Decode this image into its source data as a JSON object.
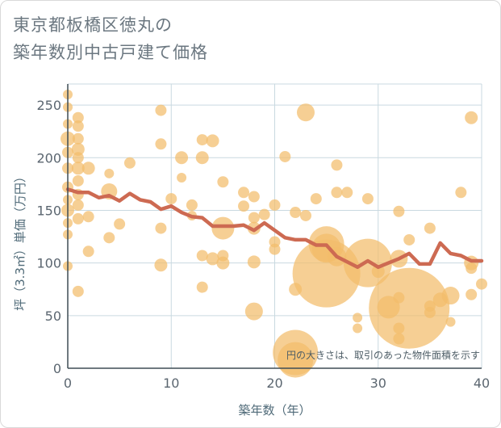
{
  "title_lines": [
    "東京都板橋区徳丸の",
    "築年数別中古戸建て価格"
  ],
  "chart_data": {
    "type": "scatter",
    "xlabel": "築年数（年）",
    "ylabel": "坪（3.3㎡）単価（万円）",
    "xlim": [
      0,
      40
    ],
    "ylim": [
      0,
      270
    ],
    "xticks": [
      0,
      10,
      20,
      30,
      40
    ],
    "yticks": [
      0,
      50,
      100,
      150,
      200,
      250
    ],
    "grid": true,
    "note": "円の大きさは、取引のあった物件面積を示す",
    "colors": {
      "bubble": "#f3bd6b",
      "line": "#cd6a52",
      "grid": "#c9d9e0",
      "axis": "#3f4d55"
    },
    "bubbles": [
      {
        "x": 0,
        "y": 260,
        "r": 6
      },
      {
        "x": 0,
        "y": 248,
        "r": 6
      },
      {
        "x": 0,
        "y": 232,
        "r": 6
      },
      {
        "x": 0,
        "y": 218,
        "r": 9
      },
      {
        "x": 0,
        "y": 205,
        "r": 7
      },
      {
        "x": 0,
        "y": 190,
        "r": 7
      },
      {
        "x": 0,
        "y": 172,
        "r": 7
      },
      {
        "x": 0,
        "y": 160,
        "r": 6
      },
      {
        "x": 0,
        "y": 150,
        "r": 8
      },
      {
        "x": 0,
        "y": 138,
        "r": 6
      },
      {
        "x": 0,
        "y": 127,
        "r": 6
      },
      {
        "x": 0,
        "y": 97,
        "r": 6
      },
      {
        "x": 1,
        "y": 238,
        "r": 7
      },
      {
        "x": 1,
        "y": 230,
        "r": 7
      },
      {
        "x": 1,
        "y": 218,
        "r": 7
      },
      {
        "x": 1,
        "y": 208,
        "r": 8
      },
      {
        "x": 1,
        "y": 200,
        "r": 7
      },
      {
        "x": 1,
        "y": 190,
        "r": 8
      },
      {
        "x": 1,
        "y": 178,
        "r": 7
      },
      {
        "x": 1,
        "y": 165,
        "r": 7
      },
      {
        "x": 1,
        "y": 155,
        "r": 7
      },
      {
        "x": 1,
        "y": 142,
        "r": 7
      },
      {
        "x": 1,
        "y": 73,
        "r": 7
      },
      {
        "x": 2,
        "y": 190,
        "r": 8
      },
      {
        "x": 2,
        "y": 144,
        "r": 7
      },
      {
        "x": 2,
        "y": 111,
        "r": 7
      },
      {
        "x": 4,
        "y": 185,
        "r": 6
      },
      {
        "x": 4,
        "y": 168,
        "r": 10
      },
      {
        "x": 4,
        "y": 124,
        "r": 7
      },
      {
        "x": 5,
        "y": 137,
        "r": 7
      },
      {
        "x": 6,
        "y": 195,
        "r": 7
      },
      {
        "x": 9,
        "y": 245,
        "r": 7
      },
      {
        "x": 9,
        "y": 213,
        "r": 7
      },
      {
        "x": 9,
        "y": 133,
        "r": 7
      },
      {
        "x": 9,
        "y": 98,
        "r": 8
      },
      {
        "x": 10,
        "y": 161,
        "r": 7
      },
      {
        "x": 11,
        "y": 200,
        "r": 8
      },
      {
        "x": 11,
        "y": 181,
        "r": 6
      },
      {
        "x": 12,
        "y": 155,
        "r": 7
      },
      {
        "x": 12,
        "y": 145,
        "r": 6
      },
      {
        "x": 13,
        "y": 217,
        "r": 7
      },
      {
        "x": 13,
        "y": 200,
        "r": 8
      },
      {
        "x": 13,
        "y": 107,
        "r": 7
      },
      {
        "x": 13,
        "y": 77,
        "r": 7
      },
      {
        "x": 14,
        "y": 216,
        "r": 8
      },
      {
        "x": 14,
        "y": 104,
        "r": 8
      },
      {
        "x": 15,
        "y": 177,
        "r": 7
      },
      {
        "x": 15,
        "y": 133,
        "r": 14
      },
      {
        "x": 15,
        "y": 107,
        "r": 7
      },
      {
        "x": 15,
        "y": 100,
        "r": 8
      },
      {
        "x": 17,
        "y": 167,
        "r": 7
      },
      {
        "x": 17,
        "y": 154,
        "r": 7
      },
      {
        "x": 18,
        "y": 163,
        "r": 7
      },
      {
        "x": 18,
        "y": 143,
        "r": 7
      },
      {
        "x": 18,
        "y": 133,
        "r": 8
      },
      {
        "x": 18,
        "y": 101,
        "r": 8
      },
      {
        "x": 18,
        "y": 54,
        "r": 11
      },
      {
        "x": 19,
        "y": 146,
        "r": 7
      },
      {
        "x": 20,
        "y": 155,
        "r": 7
      },
      {
        "x": 20,
        "y": 120,
        "r": 7
      },
      {
        "x": 20,
        "y": 113,
        "r": 7
      },
      {
        "x": 21,
        "y": 201,
        "r": 7
      },
      {
        "x": 22,
        "y": 148,
        "r": 7
      },
      {
        "x": 22,
        "y": 75,
        "r": 8
      },
      {
        "x": 22,
        "y": 15,
        "r": 28
      },
      {
        "x": 22,
        "y": 8,
        "r": 22
      },
      {
        "x": 23,
        "y": 243,
        "r": 11
      },
      {
        "x": 23,
        "y": 145,
        "r": 7
      },
      {
        "x": 24,
        "y": 161,
        "r": 7
      },
      {
        "x": 25,
        "y": 114,
        "r": 18
      },
      {
        "x": 25,
        "y": 118,
        "r": 22
      },
      {
        "x": 25,
        "y": 90,
        "r": 42
      },
      {
        "x": 26,
        "y": 193,
        "r": 7
      },
      {
        "x": 26,
        "y": 167,
        "r": 7
      },
      {
        "x": 26,
        "y": 106,
        "r": 12
      },
      {
        "x": 27,
        "y": 167,
        "r": 7
      },
      {
        "x": 28,
        "y": 48,
        "r": 6
      },
      {
        "x": 28,
        "y": 38,
        "r": 6
      },
      {
        "x": 29,
        "y": 161,
        "r": 7
      },
      {
        "x": 29,
        "y": 100,
        "r": 30
      },
      {
        "x": 30,
        "y": 92,
        "r": 8
      },
      {
        "x": 31,
        "y": 58,
        "r": 14
      },
      {
        "x": 32,
        "y": 149,
        "r": 7
      },
      {
        "x": 32,
        "y": 104,
        "r": 11
      },
      {
        "x": 32,
        "y": 67,
        "r": 7
      },
      {
        "x": 32,
        "y": 38,
        "r": 7
      },
      {
        "x": 32,
        "y": 28,
        "r": 7
      },
      {
        "x": 33,
        "y": 122,
        "r": 7
      },
      {
        "x": 33,
        "y": 57,
        "r": 50
      },
      {
        "x": 35,
        "y": 133,
        "r": 7
      },
      {
        "x": 35,
        "y": 59,
        "r": 7
      },
      {
        "x": 35,
        "y": 53,
        "r": 7
      },
      {
        "x": 36,
        "y": 65,
        "r": 9
      },
      {
        "x": 37,
        "y": 69,
        "r": 11
      },
      {
        "x": 37,
        "y": 44,
        "r": 6
      },
      {
        "x": 38,
        "y": 167,
        "r": 7
      },
      {
        "x": 39,
        "y": 238,
        "r": 8
      },
      {
        "x": 39,
        "y": 100,
        "r": 9
      },
      {
        "x": 39,
        "y": 95,
        "r": 7
      },
      {
        "x": 39,
        "y": 70,
        "r": 7
      },
      {
        "x": 40,
        "y": 80,
        "r": 7
      }
    ],
    "series": [
      {
        "x": [
          0,
          1,
          2,
          3,
          4,
          5,
          6,
          7,
          8,
          9,
          10,
          11,
          12,
          13,
          14,
          15,
          16,
          17,
          18,
          19,
          20,
          21,
          22,
          23,
          24,
          25,
          26,
          27,
          28,
          29,
          30,
          31,
          32,
          33,
          34,
          35,
          36,
          37,
          38,
          39,
          40
        ],
        "y": [
          170,
          167,
          167,
          162,
          164,
          159,
          166,
          160,
          158,
          151,
          154,
          148,
          144,
          143,
          135,
          135,
          135,
          136,
          131,
          138,
          131,
          124,
          122,
          122,
          117,
          117,
          106,
          101,
          96,
          102,
          96,
          100,
          104,
          109,
          99,
          99,
          119,
          109,
          107,
          102,
          102
        ]
      }
    ]
  }
}
